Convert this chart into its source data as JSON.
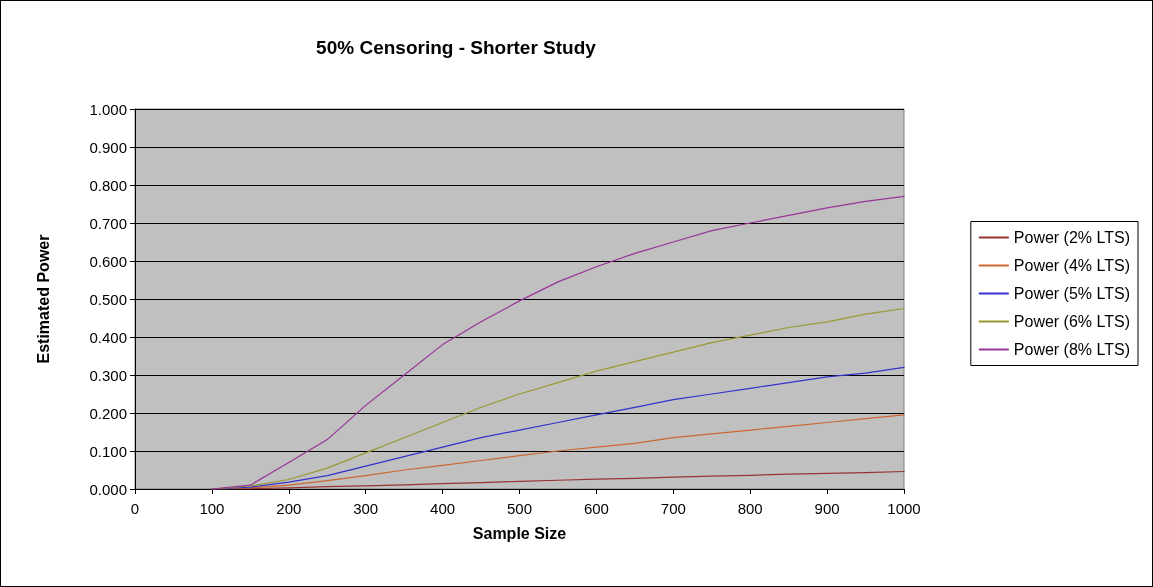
{
  "chart_data": {
    "type": "line",
    "title": "50% Censoring - Shorter Study",
    "xlabel": "Sample Size",
    "ylabel": "Estimated Power",
    "x": [
      100,
      150,
      200,
      250,
      300,
      350,
      400,
      450,
      500,
      550,
      600,
      650,
      700,
      750,
      800,
      850,
      900,
      950,
      1000
    ],
    "series": [
      {
        "name": "Power (2% LTS)",
        "color": "#993333",
        "values": [
          0,
          0.001,
          0.003,
          0.006,
          0.008,
          0.011,
          0.014,
          0.017,
          0.02,
          0.023,
          0.026,
          0.028,
          0.031,
          0.034,
          0.036,
          0.039,
          0.041,
          0.043,
          0.046
        ]
      },
      {
        "name": "Power (4% LTS)",
        "color": "#cc6633",
        "values": [
          0,
          0.003,
          0.01,
          0.022,
          0.035,
          0.05,
          0.062,
          0.075,
          0.088,
          0.1,
          0.11,
          0.12,
          0.135,
          0.145,
          0.155,
          0.165,
          0.175,
          0.185,
          0.195
        ]
      },
      {
        "name": "Power (5% LTS)",
        "color": "#3333cc",
        "values": [
          0,
          0.005,
          0.018,
          0.035,
          0.06,
          0.085,
          0.11,
          0.135,
          0.155,
          0.175,
          0.195,
          0.215,
          0.235,
          0.25,
          0.265,
          0.28,
          0.295,
          0.305,
          0.32
        ]
      },
      {
        "name": "Power (6% LTS)",
        "color": "#999933",
        "values": [
          0,
          0.008,
          0.025,
          0.055,
          0.095,
          0.135,
          0.175,
          0.215,
          0.25,
          0.28,
          0.31,
          0.335,
          0.36,
          0.385,
          0.405,
          0.425,
          0.44,
          0.46,
          0.475
        ]
      },
      {
        "name": "Power (8% LTS)",
        "color": "#993399",
        "values": [
          0,
          0.01,
          0.07,
          0.13,
          0.22,
          0.3,
          0.38,
          0.44,
          0.495,
          0.545,
          0.585,
          0.62,
          0.65,
          0.68,
          0.7,
          0.72,
          0.74,
          0.757,
          0.77
        ]
      }
    ],
    "xlim": [
      0,
      1000
    ],
    "xticks": [
      0,
      100,
      200,
      300,
      400,
      500,
      600,
      700,
      800,
      900,
      1000
    ],
    "ylim": [
      0,
      1
    ],
    "yticks": [
      {
        "value": 0,
        "label": "0.000"
      },
      {
        "value": 0.1,
        "label": "0.100"
      },
      {
        "value": 0.2,
        "label": "0.200"
      },
      {
        "value": 0.3,
        "label": "0.300"
      },
      {
        "value": 0.4,
        "label": "0.400"
      },
      {
        "value": 0.5,
        "label": "0.500"
      },
      {
        "value": 0.6,
        "label": "0.600"
      },
      {
        "value": 0.7,
        "label": "0.700"
      },
      {
        "value": 0.8,
        "label": "0.800"
      },
      {
        "value": 0.9,
        "label": "0.900"
      },
      {
        "value": 1,
        "label": "1.000"
      }
    ],
    "grid": "y",
    "legend": "right",
    "marker": "none",
    "line_style": "solid"
  }
}
